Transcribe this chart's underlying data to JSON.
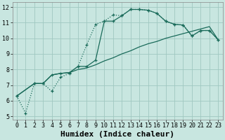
{
  "xlabel": "Humidex (Indice chaleur)",
  "background_color": "#c8e6e0",
  "grid_color": "#a0c8c0",
  "line_color": "#1a6b5a",
  "xlim": [
    -0.5,
    23.5
  ],
  "ylim": [
    4.8,
    12.3
  ],
  "xticks": [
    0,
    1,
    2,
    3,
    4,
    5,
    6,
    7,
    8,
    9,
    10,
    11,
    12,
    13,
    14,
    15,
    16,
    17,
    18,
    19,
    20,
    21,
    22,
    23
  ],
  "yticks": [
    5,
    6,
    7,
    8,
    9,
    10,
    11,
    12
  ],
  "dotted_x": [
    0,
    1,
    2,
    3,
    4,
    5,
    6,
    7,
    8,
    9,
    10,
    11,
    12,
    13,
    14,
    15,
    16,
    17,
    18,
    19,
    20,
    21,
    22,
    23
  ],
  "dotted_y": [
    6.3,
    5.2,
    7.1,
    7.1,
    6.6,
    7.5,
    7.75,
    8.2,
    9.6,
    10.9,
    11.1,
    11.5,
    11.45,
    11.85,
    11.85,
    11.8,
    11.6,
    11.1,
    10.9,
    10.85,
    10.15,
    10.5,
    10.5,
    9.9
  ],
  "solid_marked_x": [
    0,
    2,
    3,
    4,
    5,
    6,
    7,
    8,
    9,
    10,
    11,
    12,
    13,
    14,
    15,
    16,
    17,
    18,
    19,
    20,
    21,
    22,
    23
  ],
  "solid_marked_y": [
    6.3,
    7.1,
    7.1,
    7.65,
    7.75,
    7.8,
    8.2,
    8.2,
    8.6,
    11.1,
    11.1,
    11.45,
    11.85,
    11.85,
    11.8,
    11.6,
    11.1,
    10.9,
    10.85,
    10.15,
    10.5,
    10.5,
    9.9
  ],
  "solid_x": [
    0,
    2,
    3,
    4,
    5,
    6,
    7,
    8,
    9,
    10,
    11,
    12,
    13,
    14,
    15,
    16,
    17,
    18,
    19,
    20,
    21,
    22,
    23
  ],
  "solid_y": [
    6.3,
    7.1,
    7.1,
    7.65,
    7.75,
    7.8,
    8.0,
    8.1,
    8.3,
    8.55,
    8.75,
    9.0,
    9.2,
    9.45,
    9.65,
    9.8,
    10.0,
    10.15,
    10.3,
    10.45,
    10.6,
    10.75,
    9.9
  ],
  "fontsize_xlabel": 8,
  "fontsize_ticks": 6
}
